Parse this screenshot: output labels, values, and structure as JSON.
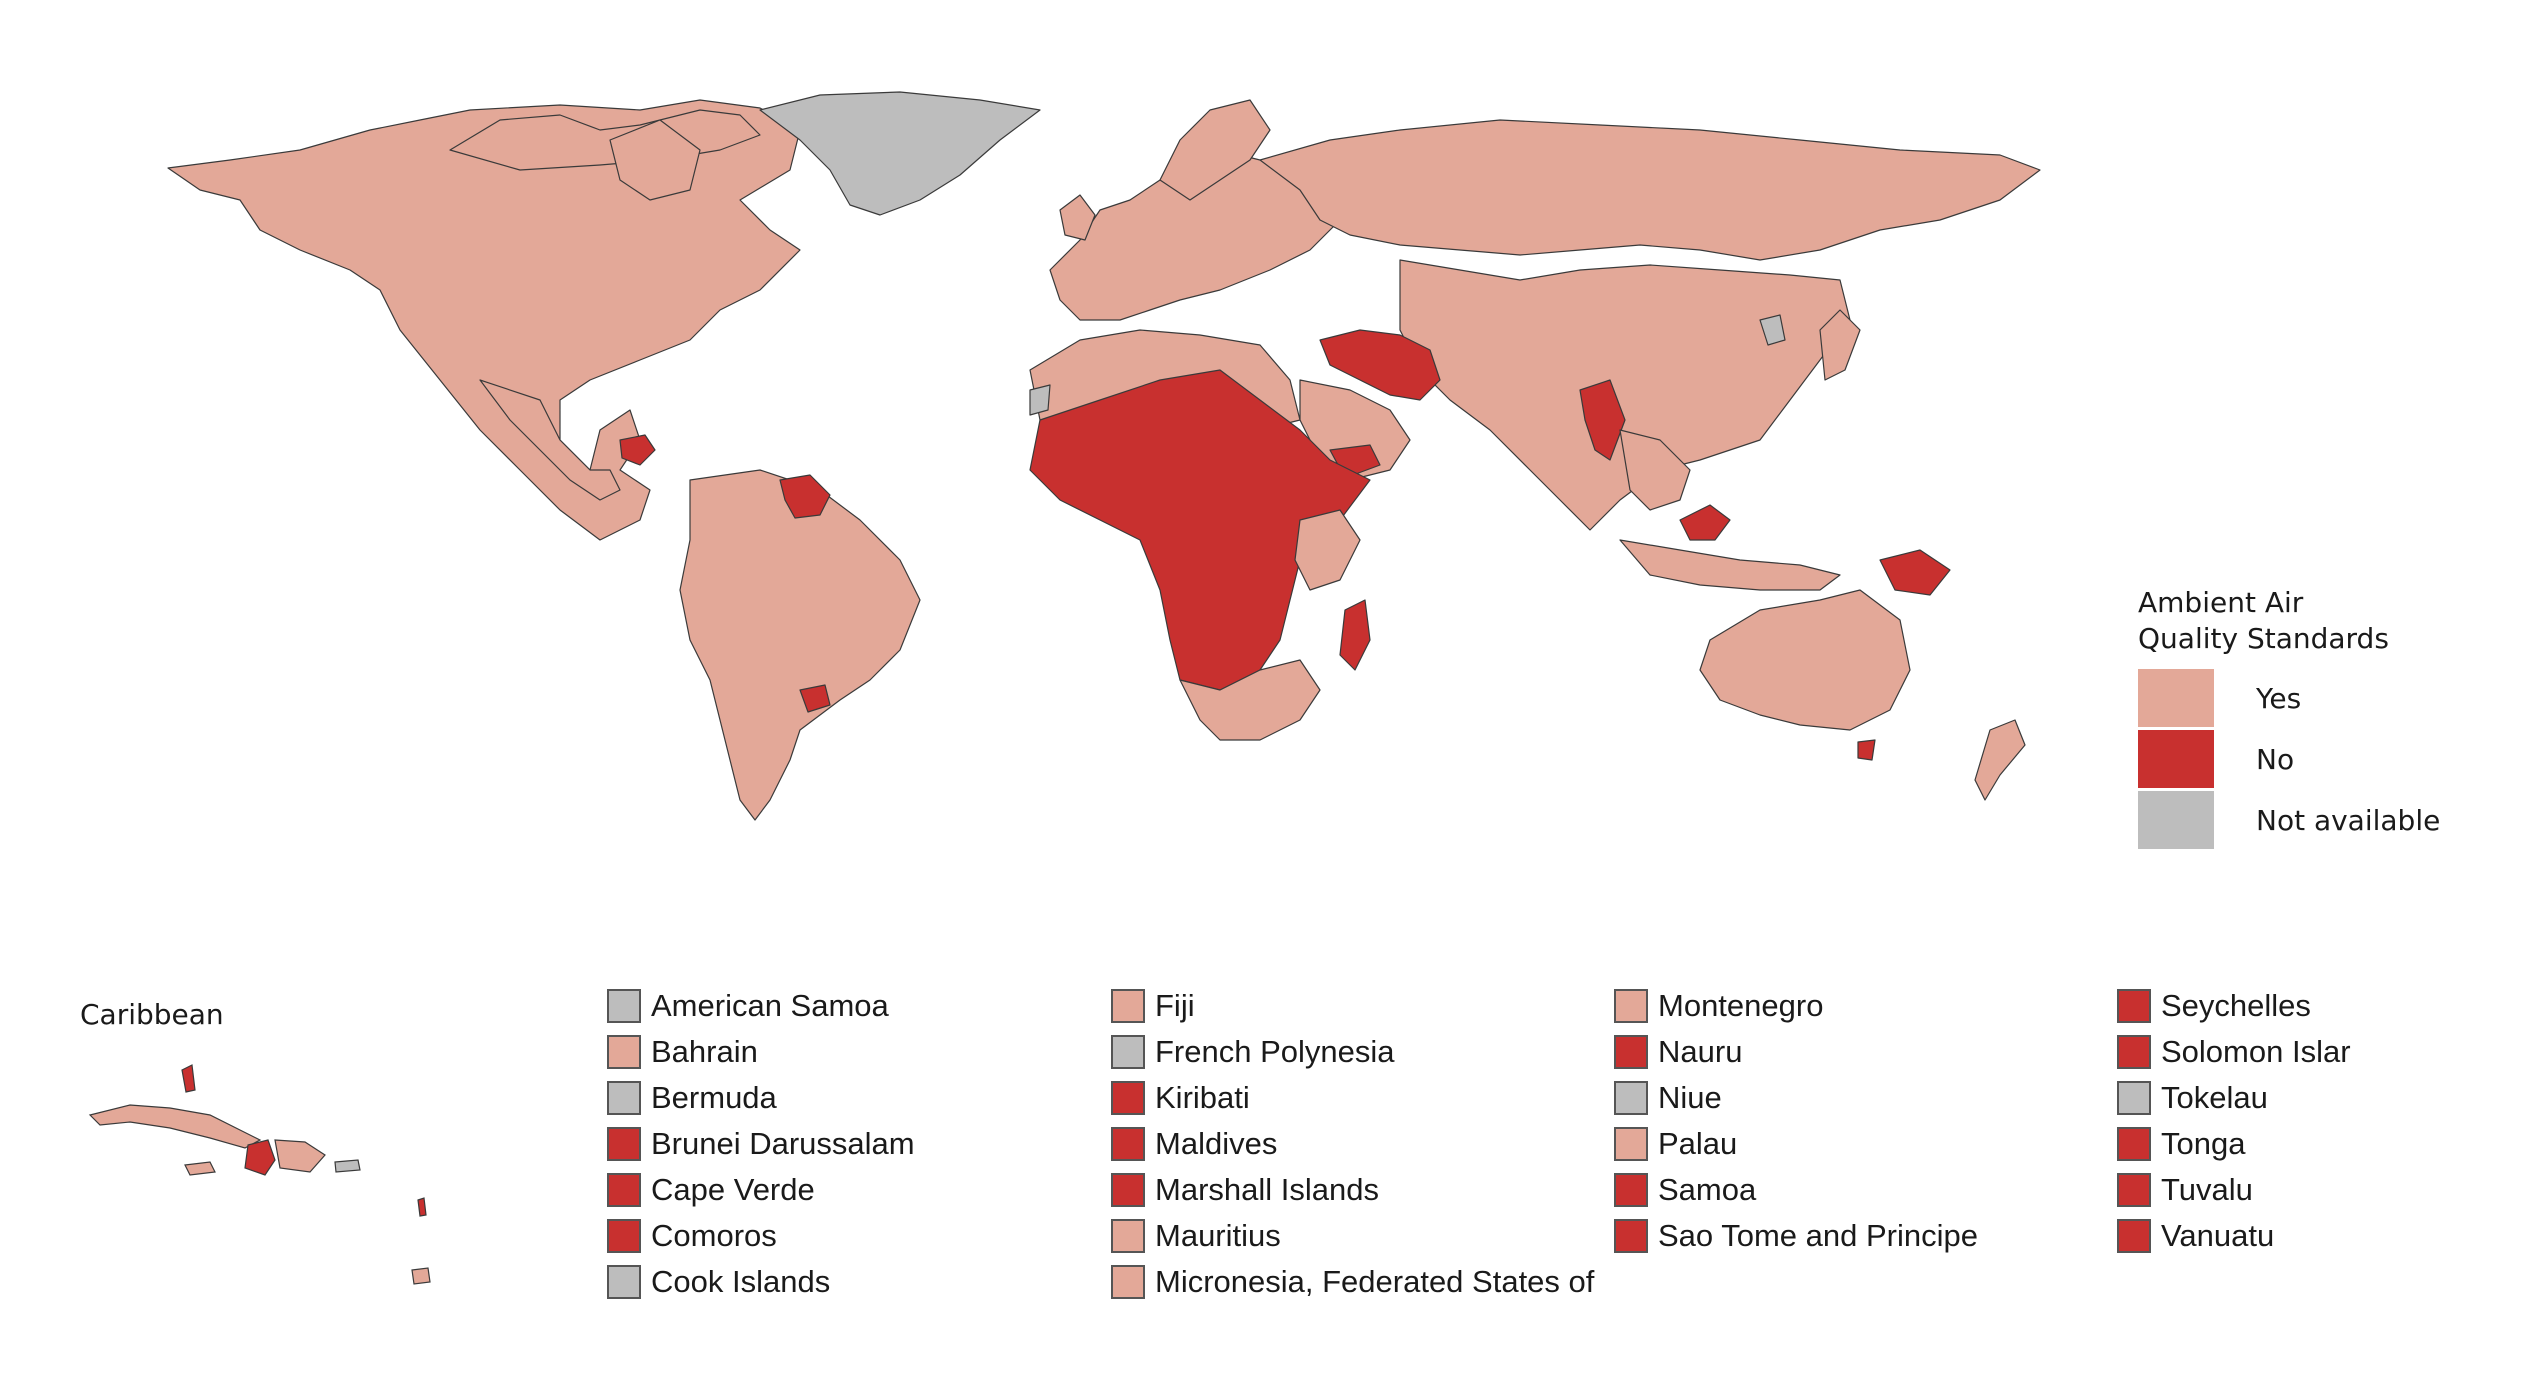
{
  "legend": {
    "title_line1": "Ambient Air",
    "title_line2": "Quality Standards",
    "items": [
      {
        "label": "Yes",
        "color": "#E3A898"
      },
      {
        "label": "No",
        "color": "#C8302F"
      },
      {
        "label": "Not available",
        "color": "#BDBDBD"
      }
    ]
  },
  "colors": {
    "yes": "#E3A898",
    "no": "#C8302F",
    "na": "#BDBDBD",
    "border": "#3a3a3a"
  },
  "inset": {
    "title": "Caribbean"
  },
  "small_countries": {
    "columns": [
      [
        {
          "name": "American Samoa",
          "status": "na"
        },
        {
          "name": "Bahrain",
          "status": "yes"
        },
        {
          "name": "Bermuda",
          "status": "na"
        },
        {
          "name": "Brunei Darussalam",
          "status": "no"
        },
        {
          "name": "Cape Verde",
          "status": "no"
        },
        {
          "name": "Comoros",
          "status": "no"
        },
        {
          "name": "Cook Islands",
          "status": "na"
        }
      ],
      [
        {
          "name": "Fiji",
          "status": "yes"
        },
        {
          "name": "French Polynesia",
          "status": "na"
        },
        {
          "name": "Kiribati",
          "status": "no"
        },
        {
          "name": "Maldives",
          "status": "no"
        },
        {
          "name": "Marshall Islands",
          "status": "no"
        },
        {
          "name": "Mauritius",
          "status": "yes"
        },
        {
          "name": "Micronesia, Federated States of",
          "status": "yes"
        }
      ],
      [
        {
          "name": "Montenegro",
          "status": "yes"
        },
        {
          "name": "Nauru",
          "status": "no"
        },
        {
          "name": "Niue",
          "status": "na"
        },
        {
          "name": "Palau",
          "status": "yes"
        },
        {
          "name": "Samoa",
          "status": "no"
        },
        {
          "name": "Sao Tome and Principe",
          "status": "no"
        }
      ],
      [
        {
          "name": "Seychelles",
          "status": "no"
        },
        {
          "name": "Solomon Islar",
          "status": "no"
        },
        {
          "name": "Tokelau",
          "status": "na"
        },
        {
          "name": "Tonga",
          "status": "no"
        },
        {
          "name": "Tuvalu",
          "status": "no"
        },
        {
          "name": "Vanuatu",
          "status": "no"
        }
      ]
    ]
  }
}
